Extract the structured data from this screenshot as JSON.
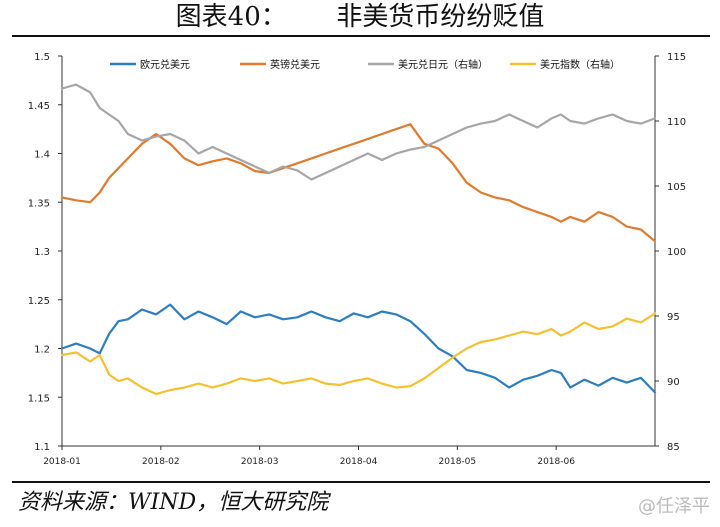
{
  "title": "图表40：      非美货币纷纷贬值",
  "source": "资料来源：WIND，恒大研究院",
  "watermark": "@任泽平",
  "chart_data": {
    "type": "line",
    "title": "",
    "xlabel": "",
    "ylabel": "",
    "y_left": {
      "min": 1.1,
      "max": 1.5,
      "ticks": [
        "1.1",
        "1.15",
        "1.2",
        "1.25",
        "1.3",
        "1.35",
        "1.4",
        "1.45",
        "1.5"
      ]
    },
    "y_right": {
      "min": 85,
      "max": 115,
      "ticks": [
        "85",
        "90",
        "95",
        "100",
        "105",
        "110",
        "115"
      ]
    },
    "x_ticks": [
      "2018-01",
      "2018-02",
      "2018-03",
      "2018-04",
      "2018-05",
      "2018-06"
    ],
    "legend": {
      "placement": "top"
    },
    "series": [
      {
        "name": "欧元兑美元",
        "axis": "left",
        "color": "#2e7ebf",
        "x": [
          0,
          3,
          6,
          8,
          10,
          12,
          14,
          17,
          20,
          23,
          26,
          29,
          32,
          35,
          38,
          41,
          44,
          47,
          50,
          53,
          56,
          59,
          62,
          65,
          68,
          71,
          74,
          77,
          80,
          83,
          86,
          89,
          92,
          95,
          98,
          101,
          104,
          106,
          108,
          111,
          114,
          117,
          120,
          123,
          126
        ],
        "y": [
          1.2,
          1.205,
          1.2,
          1.195,
          1.215,
          1.228,
          1.23,
          1.24,
          1.235,
          1.245,
          1.23,
          1.238,
          1.232,
          1.225,
          1.238,
          1.232,
          1.235,
          1.23,
          1.232,
          1.238,
          1.232,
          1.228,
          1.236,
          1.232,
          1.238,
          1.235,
          1.228,
          1.215,
          1.2,
          1.192,
          1.178,
          1.175,
          1.17,
          1.16,
          1.168,
          1.172,
          1.178,
          1.175,
          1.16,
          1.168,
          1.162,
          1.17,
          1.165,
          1.17,
          1.155
        ]
      },
      {
        "name": "英镑兑美元",
        "axis": "left",
        "color": "#e07a2e",
        "x": [
          0,
          3,
          6,
          8,
          10,
          12,
          14,
          17,
          20,
          23,
          26,
          29,
          32,
          35,
          38,
          41,
          44,
          47,
          50,
          53,
          56,
          59,
          62,
          65,
          68,
          71,
          74,
          77,
          80,
          83,
          86,
          89,
          92,
          95,
          98,
          101,
          104,
          106,
          108,
          111,
          114,
          117,
          120,
          123,
          126
        ],
        "y": [
          1.355,
          1.352,
          1.35,
          1.36,
          1.375,
          1.385,
          1.395,
          1.41,
          1.42,
          1.41,
          1.395,
          1.388,
          1.392,
          1.395,
          1.39,
          1.382,
          1.38,
          1.385,
          1.39,
          1.395,
          1.4,
          1.405,
          1.41,
          1.415,
          1.42,
          1.425,
          1.43,
          1.41,
          1.405,
          1.39,
          1.37,
          1.36,
          1.355,
          1.352,
          1.345,
          1.34,
          1.335,
          1.33,
          1.335,
          1.33,
          1.34,
          1.335,
          1.325,
          1.322,
          1.31
        ]
      },
      {
        "name": "美元兑日元（右轴）",
        "axis": "right",
        "color": "#a6a6a6",
        "x": [
          0,
          3,
          6,
          8,
          10,
          12,
          14,
          17,
          20,
          23,
          26,
          29,
          32,
          35,
          38,
          41,
          44,
          47,
          50,
          53,
          56,
          59,
          62,
          65,
          68,
          71,
          74,
          77,
          80,
          83,
          86,
          89,
          92,
          95,
          98,
          101,
          104,
          106,
          108,
          111,
          114,
          117,
          120,
          123,
          126
        ],
        "y": [
          112.5,
          112.8,
          112.2,
          111.0,
          110.5,
          110.0,
          109.0,
          108.5,
          108.8,
          109.0,
          108.5,
          107.5,
          108.0,
          107.5,
          107.0,
          106.5,
          106.0,
          106.5,
          106.2,
          105.5,
          106.0,
          106.5,
          107.0,
          107.5,
          107.0,
          107.5,
          107.8,
          108.0,
          108.5,
          109.0,
          109.5,
          109.8,
          110.0,
          110.5,
          110.0,
          109.5,
          110.2,
          110.5,
          110.0,
          109.8,
          110.2,
          110.5,
          110.0,
          109.8,
          110.2
        ]
      },
      {
        "name": "美元指数（右轴）",
        "axis": "right",
        "color": "#f3c12f",
        "x": [
          0,
          3,
          6,
          8,
          10,
          12,
          14,
          17,
          20,
          23,
          26,
          29,
          32,
          35,
          38,
          41,
          44,
          47,
          50,
          53,
          56,
          59,
          62,
          65,
          68,
          71,
          74,
          77,
          80,
          83,
          86,
          89,
          92,
          95,
          98,
          101,
          104,
          106,
          108,
          111,
          114,
          117,
          120,
          123,
          126
        ],
        "y": [
          92.0,
          92.2,
          91.5,
          92.0,
          90.5,
          90.0,
          90.2,
          89.5,
          89.0,
          89.3,
          89.5,
          89.8,
          89.5,
          89.8,
          90.2,
          90.0,
          90.2,
          89.8,
          90.0,
          90.2,
          89.8,
          89.7,
          90.0,
          90.2,
          89.8,
          89.5,
          89.6,
          90.2,
          91.0,
          91.8,
          92.5,
          93.0,
          93.2,
          93.5,
          93.8,
          93.6,
          94.0,
          93.5,
          93.8,
          94.5,
          94.0,
          94.2,
          94.8,
          94.5,
          95.2
        ]
      }
    ]
  }
}
